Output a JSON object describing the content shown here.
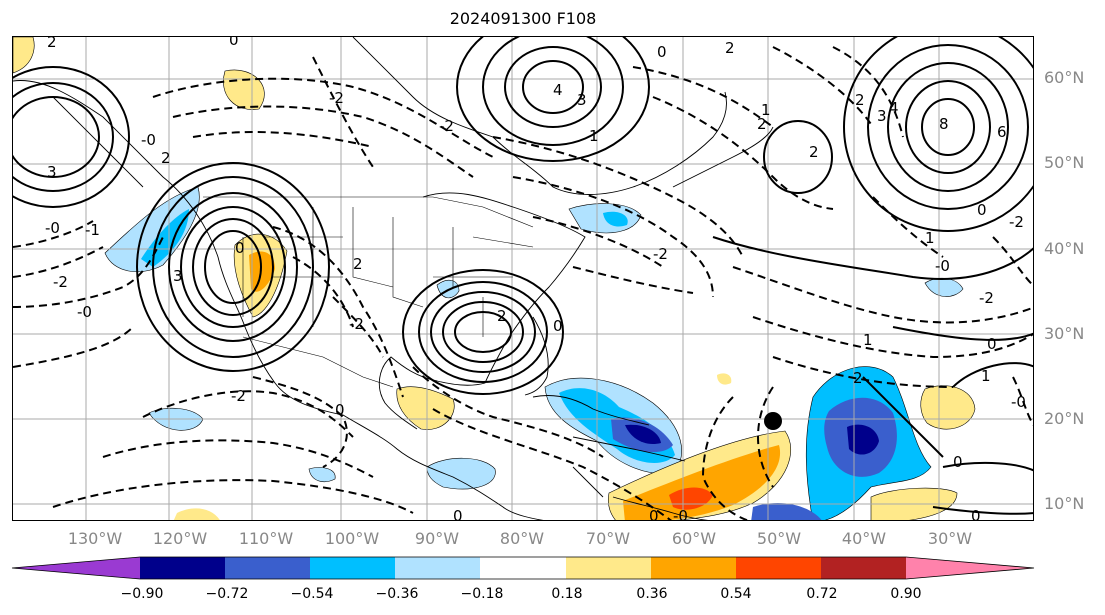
{
  "title": "2024091300 F108",
  "lat_labels": [
    "60°N",
    "50°N",
    "40°N",
    "30°N",
    "20°N",
    "10°N"
  ],
  "lon_labels": [
    "130°W",
    "120°W",
    "110°W",
    "100°W",
    "90°W",
    "80°W",
    "70°W",
    "60°W",
    "50°W",
    "40°W",
    "30°W"
  ],
  "colorbar": {
    "colors": [
      "#9a3ad2",
      "#00008b",
      "#3a5fcd",
      "#00bfff",
      "#b0e2ff",
      "#ffffff",
      "#ffe98a",
      "#ffa500",
      "#ff4500",
      "#b22222",
      "#ff82ab"
    ],
    "tick_labels": [
      "−0.90",
      "−0.72",
      "−0.54",
      "−0.36",
      "−0.18",
      "0.18",
      "0.36",
      "0.54",
      "0.72",
      "0.90"
    ]
  },
  "contour_labels": [
    "0",
    "2",
    "2",
    "4",
    "3",
    "1",
    "2",
    "2",
    "0",
    "-2",
    "-2",
    "1",
    "8",
    "6",
    "2",
    "4",
    "3",
    "0",
    "1",
    "-2",
    "-0",
    "-2",
    "-1",
    "-0",
    "2",
    "-0",
    "-2",
    "2",
    "-2",
    "-0",
    "-2",
    "0",
    "2",
    "1",
    "2",
    "0",
    "-0",
    "-2",
    "0",
    "0",
    "1",
    "0",
    "0",
    "0",
    "-0",
    "3",
    "3",
    "0"
  ],
  "storm_marker": {
    "lon": "50°W",
    "lat": "20°N"
  }
}
